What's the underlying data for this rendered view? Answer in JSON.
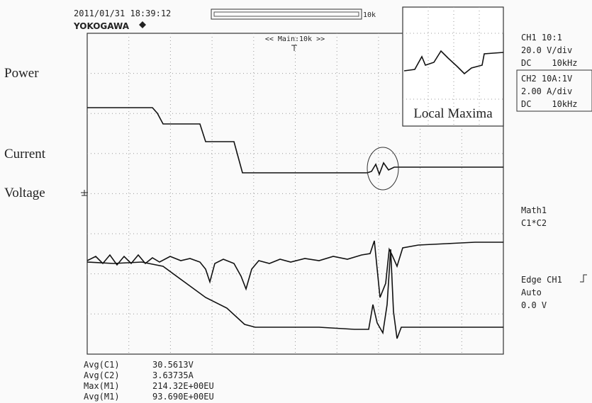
{
  "header": {
    "timestamp": "2011/01/31 18:39:12",
    "brand": "YOKOGAWA",
    "zoom_label": "10k",
    "main_label": "<< Main:10k >>"
  },
  "trace_labels": [
    "Power",
    "Current",
    "Voltage"
  ],
  "inset_label": "Local Maxima",
  "channels": [
    [
      "CH1 10:1",
      "20.0 V/div",
      "DC    10kHz"
    ],
    [
      "CH2 10A:1V",
      "2.00 A/div",
      "DC    10kHz"
    ]
  ],
  "math": [
    "Math1",
    "C1*C2"
  ],
  "trigger": [
    "Edge CH1",
    "Auto",
    "0.0 V"
  ],
  "measurements": [
    [
      "Avg(C1)",
      "30.5613V"
    ],
    [
      "Avg(C2)",
      "3.63735A"
    ],
    [
      "Max(M1)",
      "214.32E+00EU"
    ],
    [
      "Avg(M1)",
      "93.690E+00EU"
    ]
  ]
}
